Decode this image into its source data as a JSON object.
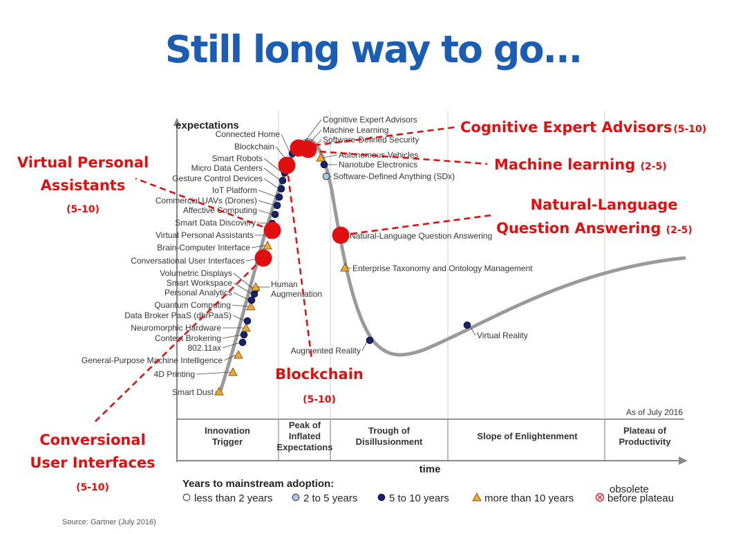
{
  "slide": {
    "title": "Still long way to go...",
    "source": "Source: Gartner (July 2016)"
  },
  "chart_data": {
    "type": "scatter",
    "ylabel": "expectations",
    "xlabel": "time",
    "as_of": "As of July 2016",
    "phases": [
      [
        "Innovation",
        "Trigger"
      ],
      [
        "Peak of",
        "Inflated",
        "Expectations"
      ],
      [
        "Trough of",
        "Disillusionment"
      ],
      [
        "Slope of Enlightenment"
      ],
      [
        "Plateau of",
        "Productivity"
      ]
    ],
    "legend": {
      "title": "Years to mainstream adoption:",
      "items": [
        {
          "key": "lt2",
          "label": "less than 2 years"
        },
        {
          "key": "2to5",
          "label": "2 to 5 years"
        },
        {
          "key": "5to10",
          "label": "5 to 10 years"
        },
        {
          "key": "gt10",
          "label": "more than 10 years"
        },
        {
          "key": "obs",
          "label": "before plateau",
          "note": "obsolete"
        }
      ]
    },
    "technologies": [
      {
        "label": "Smart Dust",
        "cat": "gt10"
      },
      {
        "label": "4D Printing",
        "cat": "gt10"
      },
      {
        "label": "General-Purpose Machine Intelligence",
        "cat": "gt10"
      },
      {
        "label": "802.11ax",
        "cat": "5to10"
      },
      {
        "label": "Context Brokering",
        "cat": "5to10"
      },
      {
        "label": "Neuromorphic Hardware",
        "cat": "gt10"
      },
      {
        "label": "Data Broker PaaS (dbrPaaS)",
        "cat": "5to10"
      },
      {
        "label": "Quantum Computing",
        "cat": "gt10"
      },
      {
        "label": "Personal Analytics",
        "cat": "5to10"
      },
      {
        "label": "Smart Workspace",
        "cat": "5to10"
      },
      {
        "label": "Volumetric Displays",
        "cat": "5to10"
      },
      {
        "label": "Conversational User Interfaces",
        "cat": "5to10"
      },
      {
        "label": "Brain-Computer Interface",
        "cat": "gt10"
      },
      {
        "label": "Virtual Personal Assistants",
        "cat": "5to10"
      },
      {
        "label": "Smart Data Discovery",
        "cat": "5to10"
      },
      {
        "label": "Affective Computing",
        "cat": "5to10"
      },
      {
        "label": "Commercial UAVs (Drones)",
        "cat": "5to10"
      },
      {
        "label": "IoT Platform",
        "cat": "5to10"
      },
      {
        "label": "Gesture Control Devices",
        "cat": "5to10"
      },
      {
        "label": "Micro Data Centers",
        "cat": "5to10"
      },
      {
        "label": "Smart Robots",
        "cat": "5to10"
      },
      {
        "label": "Blockchain",
        "cat": "5to10"
      },
      {
        "label": "Connected Home",
        "cat": "5to10"
      },
      {
        "label": "Cognitive Expert Advisors",
        "cat": "5to10"
      },
      {
        "label": "Machine Learning",
        "cat": "2to5"
      },
      {
        "label": "Software-Defined Security",
        "cat": "5to10"
      },
      {
        "label": "Autonomous Vehicles",
        "cat": "gt10"
      },
      {
        "label": "Nanotube Electronics",
        "cat": "5to10"
      },
      {
        "label": "Software-Defined Anything (SDx)",
        "cat": "2to5"
      },
      {
        "label": "Natural-Language Question Answering",
        "cat": "2to5"
      },
      {
        "label": "Enterprise Taxonomy and Ontology Management",
        "cat": "gt10"
      },
      {
        "label": "Human Augmentation",
        "cat": "gt10"
      },
      {
        "label": "Augmented Reality",
        "cat": "5to10"
      },
      {
        "label": "Virtual Reality",
        "cat": "5to10"
      }
    ],
    "colors": {
      "lt2": "#ffffff",
      "2to5": "#a9cbe8",
      "5to10": "#16246b",
      "gt10": "#f0a830",
      "obs": "#ffffff",
      "curve": "#9a9a9a",
      "highlight": "#e01010"
    }
  },
  "callouts": [
    {
      "id": "cea",
      "label": "Cognitive Expert Advisors",
      "years": "(5-10)"
    },
    {
      "id": "ml",
      "label": "Machine learning",
      "years": "(2-5)"
    },
    {
      "id": "vpa",
      "lines": [
        "Virtual Personal",
        "Assistants"
      ],
      "years": "(5-10)"
    },
    {
      "id": "nlqa",
      "lines": [
        "Natural-Language",
        "Question Answering"
      ],
      "years": "(2-5)"
    },
    {
      "id": "bc",
      "label": "Blockchain",
      "years": "(5-10)"
    },
    {
      "id": "cui",
      "lines": [
        "Conversional",
        "User Interfaces"
      ],
      "years": "(5-10)"
    }
  ]
}
